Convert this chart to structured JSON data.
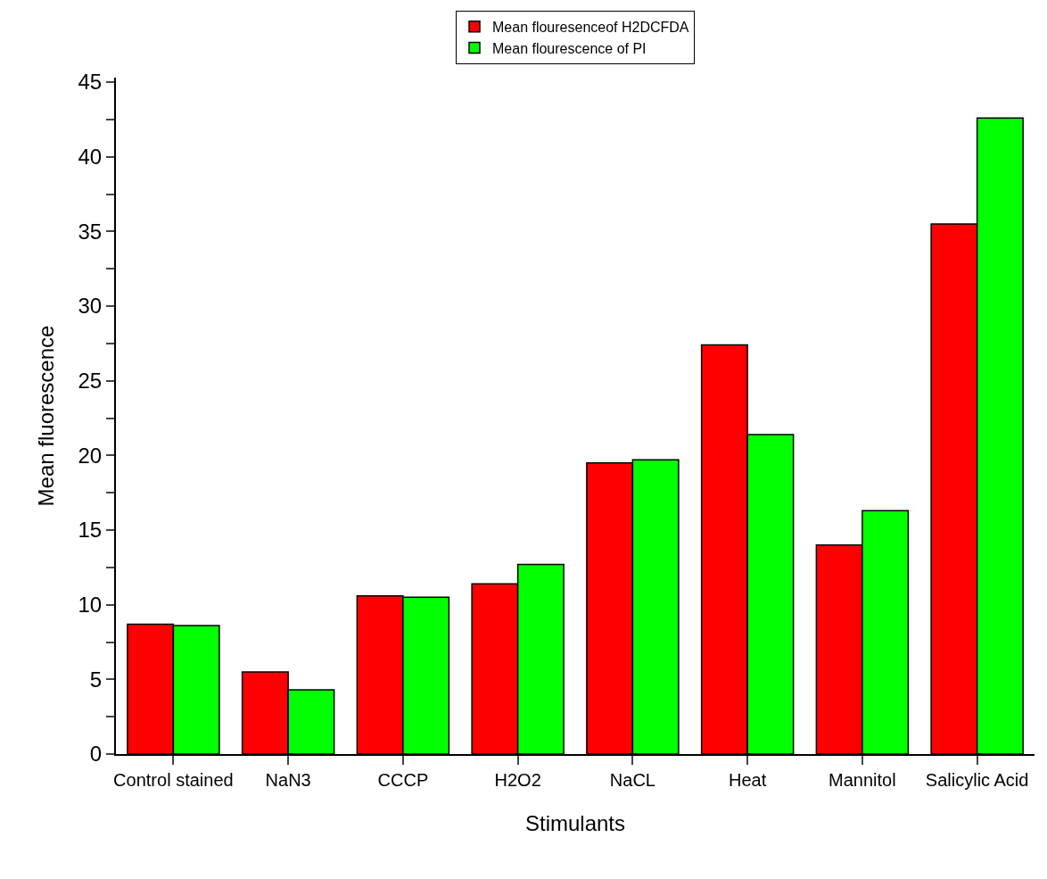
{
  "chart_data": {
    "type": "bar",
    "xlabel": "Stimulants",
    "ylabel": "Mean fluorescence",
    "categories": [
      "Control stained",
      "NaN3",
      "CCCP",
      "H2O2",
      "NaCL",
      "Heat",
      "Mannitol",
      "Salicylic Acid"
    ],
    "series": [
      {
        "name": "Mean flouresenceof H2DCFDA",
        "color": "#ff0000",
        "values": [
          8.7,
          5.5,
          10.6,
          11.4,
          19.5,
          27.4,
          14.0,
          35.5
        ]
      },
      {
        "name": "Mean flourescence of PI",
        "color": "#00ff00",
        "values": [
          8.6,
          4.3,
          10.5,
          12.7,
          19.7,
          21.4,
          16.3,
          42.6
        ]
      }
    ],
    "ylim": [
      0,
      45.3
    ],
    "yticks": [
      0,
      {
        "value": 2.5,
        "label": null
      },
      5,
      {
        "value": 7.5,
        "label": null
      },
      10,
      {
        "value": 12.5,
        "label": null
      },
      15,
      {
        "value": 17.5,
        "label": null
      },
      20,
      {
        "value": 22.5,
        "label": null
      },
      25,
      {
        "value": 27.5,
        "label": null
      },
      30,
      {
        "value": 32.5,
        "label": null
      },
      35,
      {
        "value": 37.5,
        "label": null
      },
      40,
      {
        "value": 42.5,
        "label": null
      },
      45
    ],
    "grid": false,
    "legend": "top"
  }
}
